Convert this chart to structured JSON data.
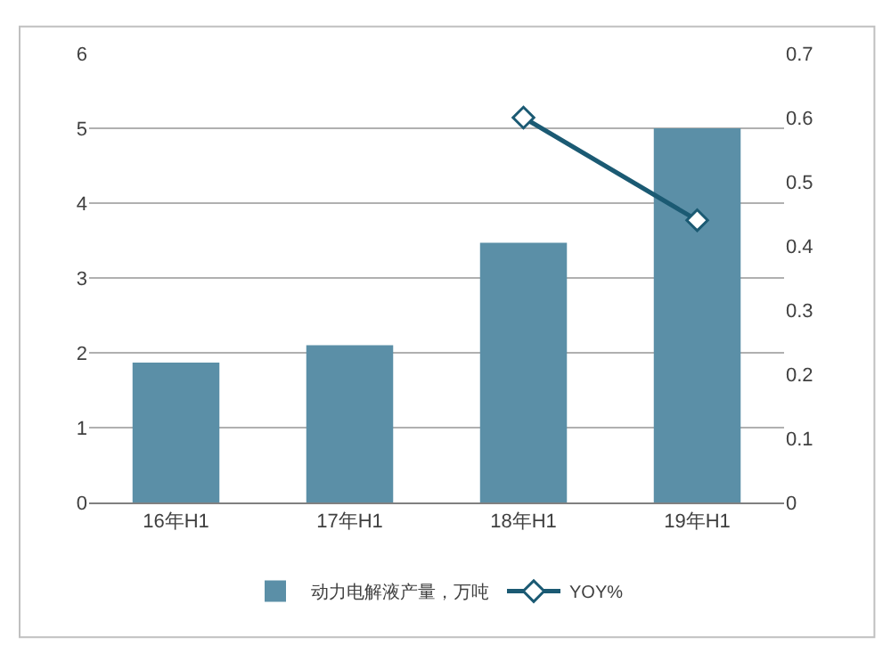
{
  "chart_data": {
    "type": "bar",
    "categories": [
      "16年H1",
      "17年H1",
      "18年H1",
      "19年H1"
    ],
    "series": [
      {
        "name": "动力电解液产量，万吨",
        "color": "#5b8fa7",
        "values": [
          1.87,
          2.1,
          3.47,
          5.0
        ]
      },
      {
        "name": "YOY%",
        "type": "line",
        "axis": "y2",
        "color": "#1b5a73",
        "marker": "diamond",
        "values": [
          null,
          null,
          0.6,
          0.44
        ]
      }
    ],
    "ylim": [
      0,
      6
    ],
    "yticks": [
      0,
      1,
      2,
      3,
      4,
      5,
      6
    ],
    "y2lim": [
      0,
      0.7
    ],
    "y2ticks": [
      0,
      0.1,
      0.2,
      0.3,
      0.4,
      0.5,
      0.6,
      0.7
    ],
    "grid": "y",
    "legend": "bottom"
  }
}
